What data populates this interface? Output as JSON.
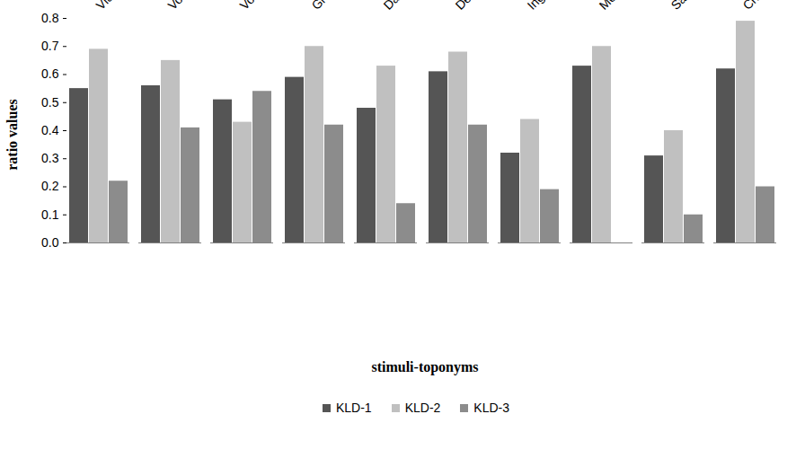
{
  "chart_data": {
    "type": "bar",
    "x_label": "stimuli-toponyms",
    "y_label": "ratio values",
    "categories": [
      "Vladikavkaz",
      "Volgograd",
      "Voronezh",
      "Grozny",
      "Dagestan",
      "Derbent",
      "Ingushetia",
      "Moscow",
      "Saint Petersburg",
      "Chechnya"
    ],
    "series": [
      {
        "name": "KLD-1",
        "color": "#555555",
        "values": [
          0.55,
          0.56,
          0.51,
          0.59,
          0.48,
          0.61,
          0.32,
          0.63,
          0.31,
          0.62
        ]
      },
      {
        "name": "KLD-2",
        "color": "#c0c0c0",
        "values": [
          0.69,
          0.65,
          0.43,
          0.7,
          0.63,
          0.68,
          0.44,
          0.7,
          0.4,
          0.79
        ]
      },
      {
        "name": "KLD-3",
        "color": "#8c8c8c",
        "values": [
          0.22,
          0.41,
          0.54,
          0.42,
          0.14,
          0.42,
          0.19,
          0,
          0.1,
          0.2
        ]
      }
    ],
    "ylim": [
      0,
      0.8
    ],
    "yticks": [
      0,
      0.1,
      0.2,
      0.3,
      0.4,
      0.5,
      0.6,
      0.7,
      0.8
    ],
    "grid": false,
    "legend": "bottom"
  }
}
